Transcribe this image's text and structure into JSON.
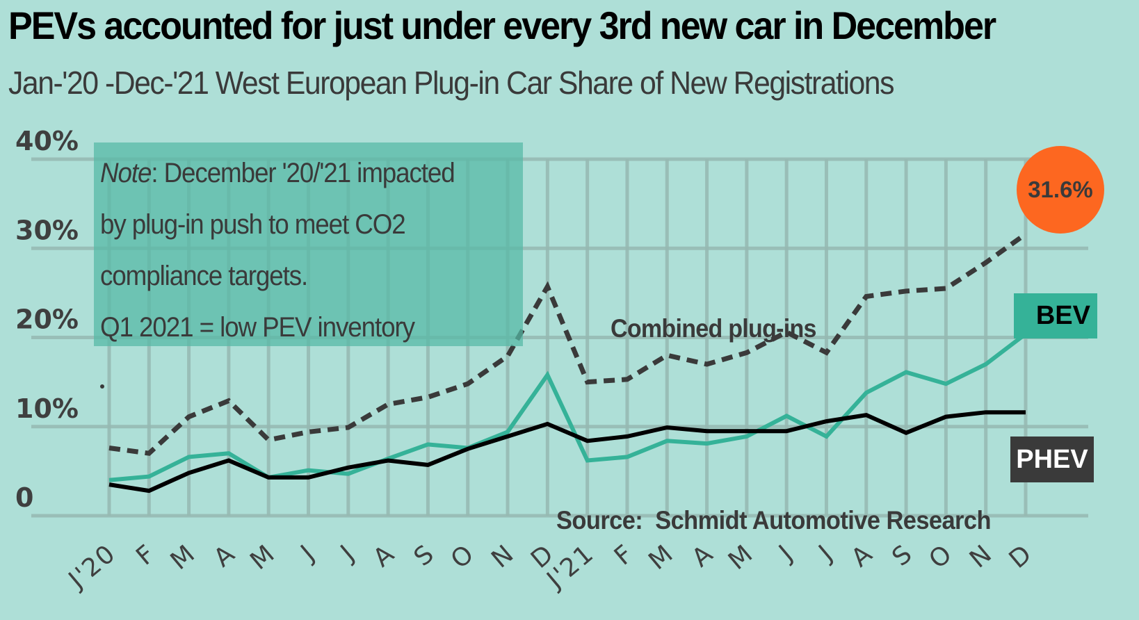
{
  "chart_data": {
    "type": "line",
    "title": "PEVs accounted for just under every 3rd new car in December",
    "subtitle": "Jan-'20 -Dec-'21 West European Plug-in Car Share of New Registrations",
    "xlabel": "",
    "ylabel": "",
    "ylim": [
      0,
      40
    ],
    "yticks": [
      {
        "value": 0,
        "label": "0"
      },
      {
        "value": 10,
        "label": "10%"
      },
      {
        "value": 20,
        "label": "20%"
      },
      {
        "value": 30,
        "label": "30%"
      },
      {
        "value": 40,
        "label": "40%"
      }
    ],
    "categories": [
      "J'20",
      "F",
      "M",
      "A",
      "M",
      "J",
      "J",
      "A",
      "S",
      "O",
      "N",
      "D",
      "J'21",
      "F",
      "M",
      "A",
      "M",
      "J",
      "J",
      "A",
      "S",
      "O",
      "N",
      "D"
    ],
    "grid": true,
    "series": [
      {
        "name": "Combined plug-ins",
        "style": "dashed",
        "color": "#3a3a3a",
        "values": [
          7.6,
          7.0,
          11.1,
          12.9,
          8.5,
          9.4,
          9.9,
          12.5,
          13.3,
          14.8,
          17.9,
          25.7,
          15.0,
          15.3,
          18.0,
          17.0,
          18.3,
          20.6,
          18.3,
          24.6,
          25.2,
          25.5,
          28.4,
          31.6
        ]
      },
      {
        "name": "BEV",
        "style": "solid",
        "color": "#35b298",
        "values": [
          4.0,
          4.4,
          6.6,
          7.0,
          4.3,
          5.1,
          4.7,
          6.4,
          8.0,
          7.6,
          9.4,
          15.8,
          6.2,
          6.6,
          8.4,
          8.1,
          8.9,
          11.2,
          8.9,
          13.8,
          16.1,
          14.8,
          17.0,
          20.4
        ]
      },
      {
        "name": "PHEV",
        "style": "solid",
        "color": "#000000",
        "values": [
          3.5,
          2.8,
          4.8,
          6.2,
          4.3,
          4.3,
          5.4,
          6.2,
          5.7,
          7.5,
          8.9,
          10.3,
          8.4,
          8.9,
          9.9,
          9.5,
          9.5,
          9.5,
          10.6,
          11.3,
          9.3,
          11.1,
          11.6,
          11.6
        ]
      }
    ],
    "annotations": {
      "note_lines": [
        {
          "italic": "Note",
          "text": ": December '20/'21 impacted"
        },
        {
          "italic": "",
          "text": "by plug-in push to meet CO2"
        },
        {
          "italic": "",
          "text": "compliance targets."
        },
        {
          "italic": "",
          "text": "Q1 2021 = low PEV inventory"
        }
      ],
      "combined_label": "Combined plug-ins",
      "bev_label": "BEV",
      "phev_label": "PHEV",
      "highlight_value": "31.6%",
      "source": "Source:  Schmidt Automotive Research"
    },
    "colors": {
      "background": "#aedfd7",
      "gridline": "#95b8b1",
      "highlight": "#fd6720",
      "bev": "#35b298",
      "phev_tag": "#3a3a3a"
    }
  }
}
